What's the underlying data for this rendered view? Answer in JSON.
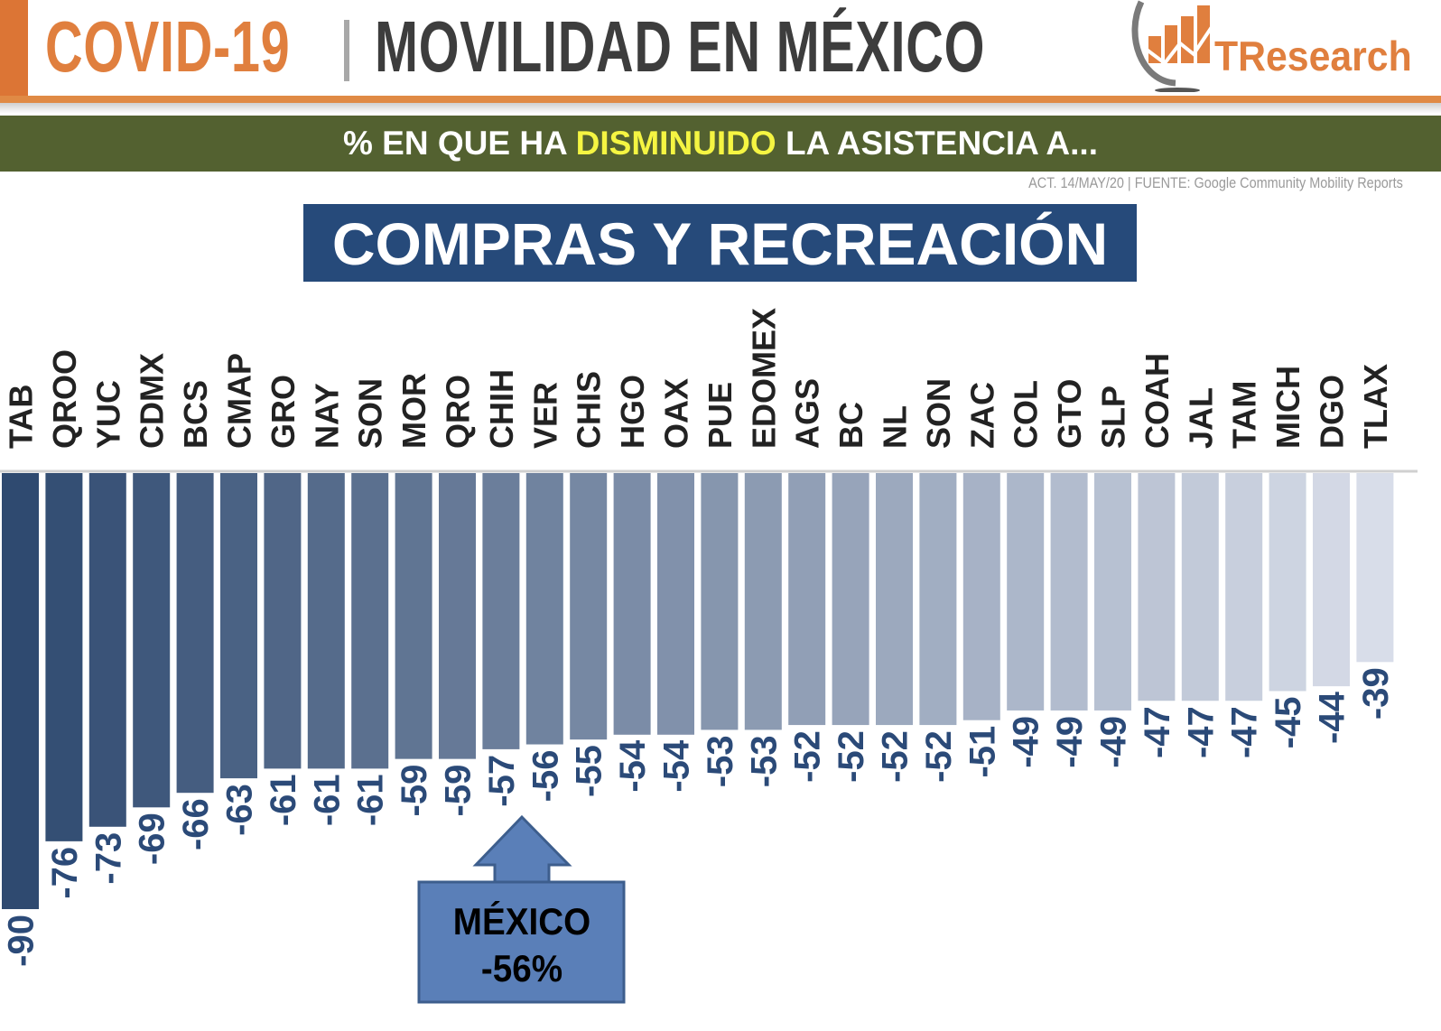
{
  "header": {
    "title_part1": "COVID-19",
    "title_part2": "MOVILIDAD EN MÉXICO",
    "logo_text": "TResearch",
    "brand_color": "#e07f3e"
  },
  "banner": {
    "prefix": "% EN QUE HA ",
    "highlight": "DISMINUIDO",
    "suffix": " LA ASISTENCIA A..."
  },
  "source": "ACT. 14/MAY/20 | FUENTE: Google Community Mobility Reports",
  "chart_data": {
    "type": "bar",
    "title": "COMPRAS Y RECREACIÓN",
    "categories": [
      "TAB",
      "QROO",
      "YUC",
      "CDMX",
      "BCS",
      "CMAP",
      "GRO",
      "NAY",
      "SON",
      "MOR",
      "QRO",
      "CHIH",
      "VER",
      "CHIS",
      "HGO",
      "OAX",
      "PUE",
      "EDOMEX",
      "AGS",
      "BC",
      "NL",
      "SON",
      "ZAC",
      "COL",
      "GTO",
      "SLP",
      "COAH",
      "JAL",
      "TAM",
      "MICH",
      "DGO",
      "TLAX"
    ],
    "values": [
      -90,
      -76,
      -73,
      -69,
      -66,
      -63,
      -61,
      -61,
      -61,
      -59,
      -59,
      -57,
      -56,
      -55,
      -54,
      -54,
      -53,
      -53,
      -52,
      -52,
      -52,
      -52,
      -51,
      -49,
      -49,
      -49,
      -47,
      -47,
      -47,
      -45,
      -44,
      -39
    ],
    "ylim": [
      -90,
      0
    ],
    "color_dark": "#2f4a70",
    "color_light": "#d8dde9",
    "label_color": "#2b4a78",
    "annotation": {
      "label": "MÉXICO",
      "value": "-56%"
    }
  }
}
